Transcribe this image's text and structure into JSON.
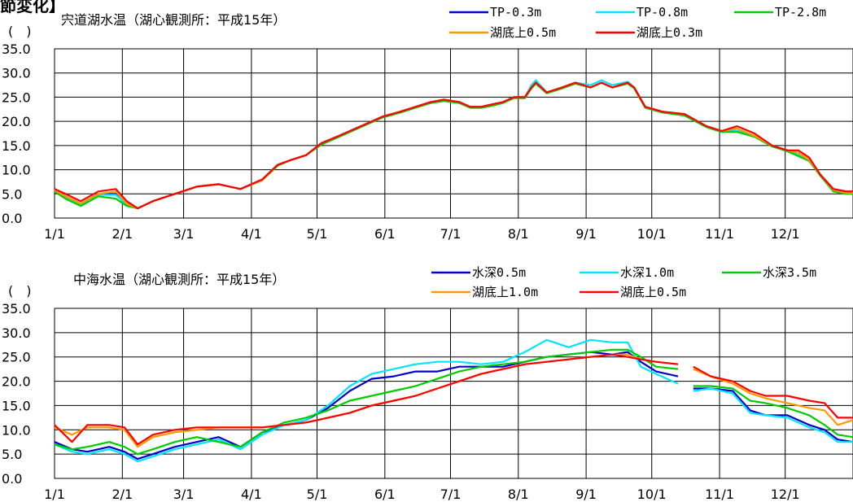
{
  "page": {
    "header_fragment": "節変化】"
  },
  "chart_data": [
    {
      "type": "line",
      "title": "宍道湖水温（湖心観測所：平成15年）",
      "ylabel": "(　)",
      "xlabel": "",
      "ylim": [
        0,
        35
      ],
      "yticks": [
        "0.0",
        "5.0",
        "10.0",
        "15.0",
        "20.0",
        "25.0",
        "30.0",
        "35.0"
      ],
      "xlim": [
        0,
        365
      ],
      "categories": [
        "1/1",
        "2/1",
        "3/1",
        "4/1",
        "5/1",
        "6/1",
        "7/1",
        "8/1",
        "9/1",
        "10/1",
        "11/1",
        "12/1"
      ],
      "grid": true,
      "legend": "top-right",
      "series": [
        {
          "name": "TP-0.3m",
          "color": "#0000cc",
          "x": [
            0,
            5,
            12,
            20,
            28,
            33,
            38,
            45,
            55,
            65,
            75,
            85,
            95,
            102,
            108,
            115,
            122,
            130,
            140,
            150,
            158,
            165,
            172,
            178,
            185,
            190,
            195,
            200,
            205,
            210,
            215,
            218,
            220,
            225,
            232,
            238,
            245,
            250,
            255,
            262,
            265,
            270,
            278,
            288,
            298,
            305,
            312,
            320,
            328,
            335,
            340,
            345,
            350,
            356,
            362,
            365
          ],
          "y": [
            6,
            4.5,
            3,
            5,
            5,
            3,
            2,
            3.5,
            5,
            6.5,
            7,
            6,
            8,
            11,
            12,
            13,
            15.5,
            17,
            19,
            21,
            22,
            23,
            24,
            24.5,
            24,
            23,
            23,
            23.5,
            24,
            25,
            25,
            27,
            28,
            26,
            27,
            28,
            27,
            28,
            27,
            28,
            27,
            23,
            22,
            21.5,
            19,
            18,
            18,
            17,
            15,
            14,
            13,
            12,
            9,
            6,
            5.5,
            5.5
          ]
        },
        {
          "name": "TP-0.8m",
          "color": "#00e5ff",
          "x": [
            0,
            5,
            12,
            20,
            28,
            33,
            38,
            45,
            55,
            65,
            75,
            85,
            95,
            102,
            108,
            115,
            122,
            130,
            140,
            150,
            158,
            165,
            172,
            178,
            185,
            190,
            195,
            200,
            205,
            210,
            215,
            218,
            220,
            225,
            232,
            238,
            245,
            250,
            255,
            262,
            265,
            270,
            278,
            288,
            298,
            305,
            312,
            320,
            328,
            335,
            340,
            345,
            350,
            356,
            362,
            365
          ],
          "y": [
            5.8,
            4.2,
            2.8,
            4.8,
            4.8,
            2.8,
            2,
            3.5,
            5,
            6.5,
            7,
            6,
            8,
            11,
            12,
            13,
            15.5,
            17,
            19,
            21,
            22,
            23,
            24,
            24.5,
            24,
            23,
            23,
            23.5,
            24,
            25,
            25,
            27.5,
            28.5,
            26,
            27,
            28,
            27.5,
            28.5,
            27.5,
            28.2,
            27,
            23,
            22,
            21.5,
            19,
            18,
            18,
            17,
            15,
            14,
            13,
            12,
            9,
            5.8,
            5.2,
            5.2
          ]
        },
        {
          "name": "TP-2.8m",
          "color": "#00cc00",
          "x": [
            0,
            5,
            12,
            20,
            28,
            33,
            38,
            45,
            55,
            65,
            75,
            85,
            95,
            102,
            108,
            115,
            122,
            130,
            140,
            150,
            158,
            165,
            172,
            178,
            185,
            190,
            195,
            200,
            205,
            210,
            215,
            218,
            220,
            225,
            232,
            238,
            245,
            250,
            255,
            262,
            265,
            270,
            278,
            288,
            298,
            305,
            312,
            320,
            328,
            335,
            340,
            345,
            350,
            356,
            362,
            365
          ],
          "y": [
            5.5,
            4,
            2.5,
            4.5,
            4,
            2.5,
            2,
            3.5,
            5,
            6.5,
            7,
            6,
            7.8,
            10.8,
            12,
            13,
            15.2,
            16.8,
            18.8,
            20.8,
            21.8,
            22.8,
            23.8,
            24.2,
            23.8,
            22.8,
            22.8,
            23.2,
            23.8,
            24.8,
            24.8,
            26.8,
            27.8,
            25.8,
            26.8,
            27.8,
            27,
            28,
            27,
            27.8,
            26.8,
            22.8,
            21.8,
            21.2,
            18.8,
            17.8,
            17.8,
            16.8,
            14.8,
            13.8,
            12.8,
            11.8,
            8.8,
            5.5,
            5,
            5
          ]
        },
        {
          "name": "湖底上0.5m",
          "color": "#ff9900",
          "x": [
            0,
            5,
            12,
            20,
            28,
            33,
            38,
            45,
            55,
            65,
            75,
            85,
            95,
            102,
            108,
            115,
            122,
            130,
            140,
            150,
            158,
            165,
            172,
            178,
            185,
            190,
            195,
            200,
            205,
            210,
            215,
            218,
            220,
            225,
            232,
            238,
            245,
            250,
            255,
            262,
            265,
            270,
            278,
            288,
            298,
            305,
            312,
            320,
            328,
            335,
            340,
            345,
            350,
            356,
            362,
            365
          ],
          "y": [
            5.8,
            4.5,
            3,
            5,
            5.5,
            3,
            2,
            3.5,
            5,
            6.5,
            7,
            6,
            7.8,
            11,
            12,
            13,
            15.5,
            17,
            19,
            21,
            22,
            23,
            24,
            24.5,
            24,
            23,
            23,
            23.5,
            24,
            25,
            25,
            27,
            28,
            26,
            27,
            28,
            27,
            28,
            27,
            28,
            27,
            23,
            22,
            21.5,
            19,
            18,
            18.5,
            17,
            15,
            14,
            13.5,
            12,
            9,
            5.8,
            5.2,
            5.2
          ]
        },
        {
          "name": "湖底上0.3m",
          "color": "#ff0000",
          "x": [
            0,
            5,
            12,
            20,
            28,
            33,
            38,
            45,
            55,
            65,
            75,
            85,
            95,
            102,
            108,
            115,
            122,
            130,
            140,
            150,
            158,
            165,
            172,
            178,
            185,
            190,
            195,
            200,
            205,
            210,
            215,
            218,
            220,
            225,
            232,
            238,
            245,
            250,
            255,
            262,
            265,
            270,
            278,
            288,
            298,
            305,
            312,
            320,
            328,
            335,
            340,
            345,
            350,
            356,
            362,
            365
          ],
          "y": [
            6,
            5,
            3.5,
            5.5,
            6,
            3.5,
            2,
            3.5,
            5,
            6.5,
            7,
            6,
            8,
            11,
            12,
            13,
            15.5,
            17,
            19,
            21,
            22,
            23,
            24,
            24.5,
            24,
            23,
            23,
            23.5,
            24,
            25,
            25,
            27,
            28,
            26,
            27,
            28,
            27,
            28,
            27,
            28,
            27,
            23,
            22,
            21.5,
            19,
            18,
            19,
            17.5,
            15,
            14,
            14,
            12.5,
            9,
            6,
            5.5,
            5.5
          ]
        }
      ]
    },
    {
      "type": "line",
      "title": "中海水温（湖心観測所：平成15年）",
      "ylabel": "(　)",
      "xlabel": "",
      "ylim": [
        0,
        35
      ],
      "yticks": [
        "0.0",
        "5.0",
        "10.0",
        "15.0",
        "20.0",
        "25.0",
        "30.0",
        "35.0"
      ],
      "xlim": [
        0,
        365
      ],
      "categories": [
        "1/1",
        "2/1",
        "3/1",
        "4/1",
        "5/1",
        "6/1",
        "7/1",
        "8/1",
        "9/1",
        "10/1",
        "11/1",
        "12/1"
      ],
      "grid": true,
      "legend": "top-right",
      "series": [
        {
          "name": "水深0.5m",
          "color": "#0000cc",
          "x": [
            0,
            8,
            15,
            25,
            32,
            38,
            45,
            55,
            65,
            75,
            85,
            95,
            105,
            115,
            125,
            135,
            145,
            155,
            165,
            175,
            185,
            195,
            205,
            215,
            225,
            235,
            245,
            255,
            262,
            268,
            275,
            285,
            288,
            292,
            300,
            310,
            318,
            325,
            335,
            345,
            352,
            358,
            365
          ],
          "y": [
            7.5,
            6,
            5.5,
            6.5,
            5.5,
            4,
            5,
            6.5,
            7.5,
            8.5,
            6.5,
            9.5,
            11,
            12,
            14.5,
            18,
            20.5,
            21,
            22,
            22,
            23,
            23,
            23,
            24,
            25,
            25.5,
            26,
            25.5,
            26,
            24,
            22,
            21,
            null,
            18.5,
            18.5,
            18,
            14,
            13,
            13,
            11,
            10,
            8,
            7.5
          ]
        },
        {
          "name": "水深1.0m",
          "color": "#00e5ff",
          "x": [
            0,
            8,
            15,
            25,
            32,
            38,
            45,
            55,
            65,
            75,
            85,
            95,
            105,
            115,
            125,
            135,
            145,
            155,
            165,
            175,
            185,
            195,
            205,
            215,
            225,
            235,
            245,
            255,
            262,
            268,
            275,
            285,
            288,
            292,
            300,
            310,
            318,
            325,
            335,
            345,
            352,
            358,
            365
          ],
          "y": [
            7,
            5.5,
            5,
            6,
            5,
            3.5,
            4.5,
            6,
            7,
            8,
            6,
            9,
            11,
            12,
            15,
            19,
            21.5,
            22.5,
            23.5,
            24,
            24,
            23.5,
            24,
            26,
            28.5,
            27,
            28.5,
            28,
            28,
            23,
            21.5,
            19.5,
            null,
            18,
            18.5,
            17.5,
            13.5,
            13,
            12.5,
            10.5,
            9.5,
            7.5,
            7.5
          ]
        },
        {
          "name": "水深3.5m",
          "color": "#00cc00",
          "x": [
            0,
            8,
            15,
            25,
            32,
            38,
            45,
            55,
            65,
            75,
            85,
            95,
            105,
            115,
            125,
            135,
            145,
            155,
            165,
            175,
            185,
            195,
            205,
            215,
            225,
            235,
            245,
            255,
            262,
            268,
            275,
            285,
            288,
            292,
            300,
            310,
            318,
            325,
            335,
            345,
            352,
            358,
            365
          ],
          "y": [
            7,
            6,
            6.5,
            7.5,
            6.5,
            5,
            6,
            7.5,
            8.5,
            7.5,
            6.5,
            9.5,
            11.5,
            12.5,
            14,
            16,
            17,
            18,
            19,
            20.5,
            22,
            23,
            23.5,
            24,
            25,
            25.5,
            26,
            26.5,
            26.5,
            25,
            23,
            22.5,
            null,
            19,
            19,
            18.5,
            16,
            15.5,
            14.5,
            13,
            11,
            9,
            8.5
          ]
        },
        {
          "name": "湖底上1.0m",
          "color": "#ff9900",
          "x": [
            0,
            8,
            15,
            25,
            32,
            38,
            45,
            55,
            65,
            75,
            85,
            95,
            105,
            115,
            125,
            135,
            145,
            155,
            165,
            175,
            185,
            195,
            205,
            215,
            225,
            235,
            245,
            255,
            262,
            268,
            275,
            285,
            288,
            292,
            300,
            310,
            318,
            325,
            335,
            345,
            352,
            358,
            365
          ],
          "y": [
            10.5,
            9,
            10.5,
            10.5,
            10,
            6.5,
            8.5,
            9.5,
            10,
            10.5,
            10.5,
            10.5,
            11,
            11.5,
            12.5,
            13.5,
            15,
            16,
            17,
            18.5,
            20,
            21.5,
            22.5,
            23.5,
            24,
            24.5,
            25,
            25.5,
            25.5,
            24.5,
            24,
            23.5,
            null,
            22.5,
            21,
            19.5,
            17.5,
            16.5,
            15.5,
            14.5,
            14,
            11,
            12
          ]
        },
        {
          "name": "湖底上0.5m",
          "color": "#ff0000",
          "x": [
            0,
            8,
            15,
            25,
            32,
            38,
            45,
            55,
            65,
            75,
            85,
            95,
            105,
            115,
            125,
            135,
            145,
            155,
            165,
            175,
            185,
            195,
            205,
            215,
            225,
            235,
            245,
            255,
            262,
            268,
            275,
            285,
            288,
            292,
            300,
            310,
            318,
            325,
            335,
            345,
            352,
            358,
            365
          ],
          "y": [
            11,
            7.5,
            11,
            11,
            10.5,
            7,
            9,
            10,
            10.5,
            10.5,
            10.5,
            10.5,
            11,
            11.5,
            12.5,
            13.5,
            15,
            16,
            17,
            18.5,
            20,
            21.5,
            22.5,
            23.5,
            24,
            24.5,
            25,
            25.5,
            25,
            24.5,
            24,
            23.5,
            null,
            23,
            21,
            20,
            18,
            17,
            17,
            16,
            15.5,
            12.5,
            12.5
          ]
        }
      ]
    }
  ]
}
